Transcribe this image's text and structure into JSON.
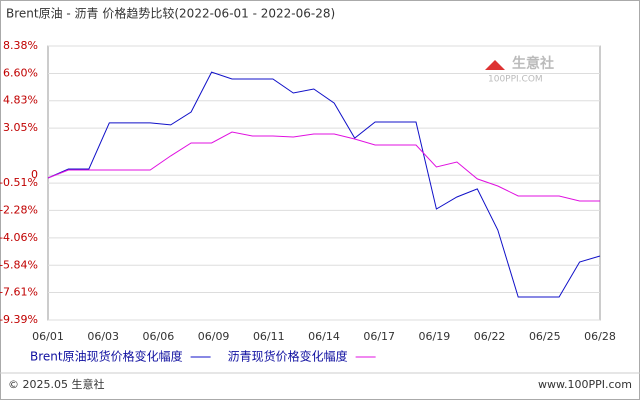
{
  "chart_data": {
    "type": "line",
    "title": "Brent原油 - 沥青 价格趋势比较(2022-06-01 - 2022-06-28)",
    "x_labels": [
      "06/01",
      "06/03",
      "06/06",
      "06/09",
      "06/11",
      "06/14",
      "06/17",
      "06/19",
      "06/22",
      "06/25",
      "06/28"
    ],
    "ylim": [
      -9.39,
      8.38
    ],
    "yticks": [
      {
        "value": 8.38,
        "label": "8.38%"
      },
      {
        "value": 6.6,
        "label": "6.60%"
      },
      {
        "value": 4.83,
        "label": "4.83%"
      },
      {
        "value": 3.05,
        "label": "3.05%"
      },
      0,
      {
        "value": -0.51,
        "label": "-0.51%"
      },
      {
        "value": -2.28,
        "label": "-2.28%"
      },
      {
        "value": -4.06,
        "label": "-4.06%"
      },
      {
        "value": -5.84,
        "label": "-5.84%"
      },
      {
        "value": -7.61,
        "label": "-7.61%"
      },
      {
        "value": -9.39,
        "label": "-9.39%"
      }
    ],
    "series": [
      {
        "name": "Brent原油现货价格变化幅度",
        "color": "#1010c8",
        "values": [
          -0.18,
          0.4,
          0.4,
          3.39,
          3.39,
          3.39,
          3.26,
          4.1,
          6.69,
          6.24,
          6.24,
          6.24,
          5.33,
          5.59,
          4.68,
          2.41,
          3.45,
          3.45,
          3.45,
          -2.19,
          -1.41,
          -0.89,
          -3.55,
          -7.9,
          -7.9,
          -7.9,
          -5.63,
          -5.24
        ]
      },
      {
        "name": "沥青现货价格变化幅度",
        "color": "#e010e0",
        "values": [
          -0.18,
          0.34,
          0.34,
          0.34,
          0.34,
          0.34,
          1.25,
          2.09,
          2.09,
          2.8,
          2.54,
          2.54,
          2.48,
          2.67,
          2.67,
          2.35,
          1.96,
          1.96,
          1.96,
          0.53,
          0.86,
          -0.24,
          -0.7,
          -1.35,
          -1.35,
          -1.35,
          -1.67,
          -1.67
        ]
      }
    ]
  },
  "footer": {
    "copyright": "© 2025.05 生意社",
    "site": "www.100PPI.com"
  },
  "watermark": {
    "name": "生意社",
    "site": "100PPI.COM"
  }
}
